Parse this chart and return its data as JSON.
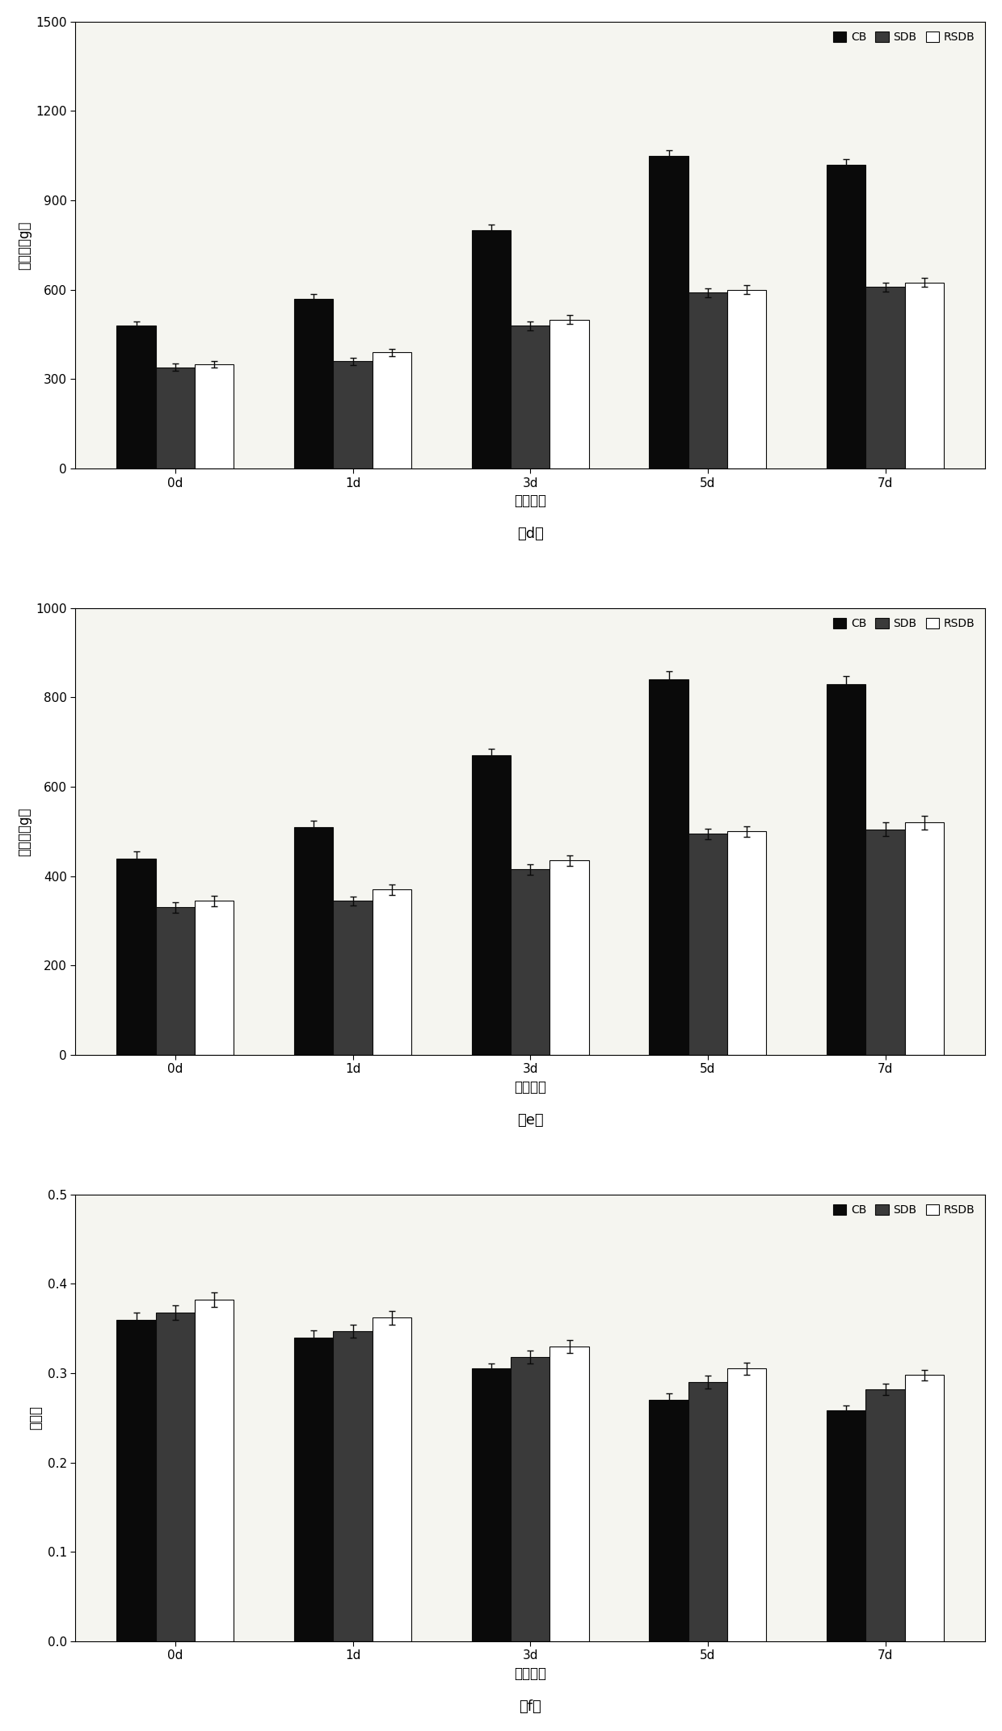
{
  "subplots": [
    {
      "label": "（d）",
      "ylabel": "胶粘性（g）",
      "xlabel": "储藏时间",
      "ylim": [
        0,
        1500
      ],
      "yticks": [
        0,
        300,
        600,
        900,
        1200,
        1500
      ],
      "xtick_labels": [
        "0d",
        "1d",
        "3d",
        "5d",
        "7d"
      ],
      "cb_values": [
        480,
        570,
        800,
        1050,
        1020
      ],
      "sdb_values": [
        340,
        360,
        480,
        590,
        610
      ],
      "rsdb_values": [
        350,
        390,
        500,
        600,
        625
      ],
      "cb_errors": [
        15,
        15,
        18,
        18,
        18
      ],
      "sdb_errors": [
        12,
        12,
        15,
        15,
        15
      ],
      "rsdb_errors": [
        12,
        12,
        15,
        15,
        15
      ]
    },
    {
      "label": "（e）",
      "ylabel": "咀嚼性（g）",
      "xlabel": "储藏时间",
      "ylim": [
        0,
        1000
      ],
      "yticks": [
        0,
        200,
        400,
        600,
        800,
        1000
      ],
      "xtick_labels": [
        "0d",
        "1d",
        "3d",
        "5d",
        "7d"
      ],
      "cb_values": [
        440,
        510,
        670,
        840,
        830
      ],
      "sdb_values": [
        330,
        345,
        415,
        495,
        505
      ],
      "rsdb_values": [
        345,
        370,
        435,
        500,
        520
      ],
      "cb_errors": [
        15,
        15,
        15,
        18,
        18
      ],
      "sdb_errors": [
        12,
        10,
        12,
        12,
        15
      ],
      "rsdb_errors": [
        12,
        12,
        12,
        12,
        15
      ]
    },
    {
      "label": "（f）",
      "ylabel": "回复性",
      "xlabel": "储藏时间",
      "ylim": [
        0,
        0.5
      ],
      "yticks": [
        0,
        0.1,
        0.2,
        0.3,
        0.4,
        0.5
      ],
      "xtick_labels": [
        "0d",
        "1d",
        "3d",
        "5d",
        "7d"
      ],
      "cb_values": [
        0.36,
        0.34,
        0.305,
        0.27,
        0.258
      ],
      "sdb_values": [
        0.368,
        0.347,
        0.318,
        0.29,
        0.282
      ],
      "rsdb_values": [
        0.382,
        0.362,
        0.33,
        0.305,
        0.298
      ],
      "cb_errors": [
        0.008,
        0.008,
        0.006,
        0.007,
        0.006
      ],
      "sdb_errors": [
        0.008,
        0.007,
        0.007,
        0.007,
        0.006
      ],
      "rsdb_errors": [
        0.008,
        0.008,
        0.007,
        0.007,
        0.006
      ]
    }
  ],
  "legend_labels": [
    "CB",
    "SDB",
    "RSDB"
  ],
  "cb_color": "#0a0a0a",
  "sdb_color": "#3a3a3a",
  "rsdb_color": "#ffffff",
  "bar_edge_color": "#0a0a0a",
  "bar_width": 0.22,
  "figure_bg": "#ffffff",
  "axes_bg": "#f5f5f0",
  "font_size_tick": 11,
  "font_size_label": 12,
  "font_size_legend": 10,
  "font_size_caption": 13,
  "error_capsize": 3,
  "error_linewidth": 1.0,
  "error_color": "#0a0a0a"
}
